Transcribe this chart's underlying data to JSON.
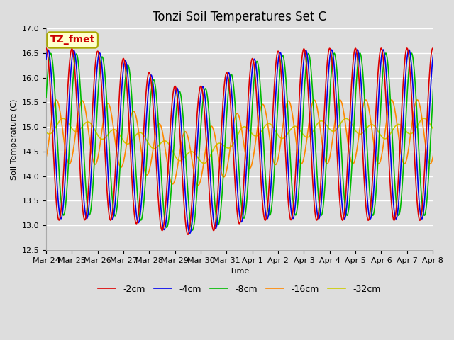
{
  "title": "Tonzi Soil Temperatures Set C",
  "xlabel": "Time",
  "ylabel": "Soil Temperature (C)",
  "ylim": [
    12.5,
    17.0
  ],
  "annotation_text": "TZ_fmet",
  "annotation_color": "#cc0000",
  "series": [
    {
      "label": "-2cm",
      "color": "#dd0000",
      "lw": 1.2
    },
    {
      "label": "-4cm",
      "color": "#0000ee",
      "lw": 1.2
    },
    {
      "label": "-8cm",
      "color": "#00bb00",
      "lw": 1.2
    },
    {
      "label": "-16cm",
      "color": "#ff8800",
      "lw": 1.2
    },
    {
      "label": "-32cm",
      "color": "#cccc00",
      "lw": 1.2
    }
  ],
  "tick_labels": [
    "Mar 24",
    "Mar 25",
    "Mar 26",
    "Mar 27",
    "Mar 28",
    "Mar 29",
    "Mar 30",
    "Mar 31",
    "Apr 1",
    "Apr 2",
    "Apr 3",
    "Apr 4",
    "Apr 5",
    "Apr 6",
    "Apr 7",
    "Apr 8"
  ],
  "title_fontsize": 12,
  "axis_fontsize": 8,
  "legend_fontsize": 9,
  "figsize": [
    6.4,
    4.8
  ],
  "dpi": 100
}
